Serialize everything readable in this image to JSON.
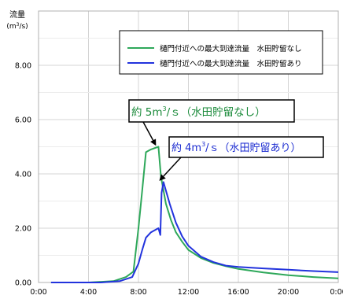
{
  "chart_data": {
    "type": "line",
    "ylabel": "流量",
    "yunit": "(m3/s)",
    "xlim": [
      0,
      24
    ],
    "ylim": [
      0,
      10
    ],
    "x_ticks": [
      0,
      4,
      8,
      12,
      16,
      20,
      24
    ],
    "x_tick_labels": [
      "0:00",
      "4:00",
      "8:00",
      "12:00",
      "16:00",
      "20:00",
      "0:00"
    ],
    "y_ticks": [
      0,
      2,
      4,
      6,
      8
    ],
    "y_tick_labels": [
      "0.00",
      "2.00",
      "4.00",
      "6.00",
      "8.00"
    ],
    "grid": true,
    "legend_position": "top-right",
    "series": [
      {
        "name": "樋門付近への最大到達流量　水田貯留なし",
        "color": "#2ea85a",
        "x": [
          1,
          4,
          6,
          7,
          7.6,
          8,
          8.3,
          8.6,
          9,
          9.6,
          9.8,
          10.2,
          10.6,
          11,
          11.5,
          12,
          13,
          14,
          15,
          16,
          18,
          20,
          22,
          24
        ],
        "y": [
          0,
          0,
          0.05,
          0.2,
          0.4,
          2.0,
          3.4,
          4.8,
          4.9,
          5.0,
          3.9,
          2.9,
          2.3,
          1.85,
          1.5,
          1.2,
          0.9,
          0.72,
          0.6,
          0.5,
          0.37,
          0.27,
          0.2,
          0.15
        ]
      },
      {
        "name": "樋門付近への最大到達流量　水田貯留あり",
        "color": "#2233dd",
        "x": [
          1,
          5,
          6.5,
          7.5,
          8,
          8.3,
          8.6,
          9,
          9.4,
          9.6,
          9.75,
          9.85,
          10,
          10.5,
          11,
          11.5,
          12,
          13,
          14,
          15,
          16,
          18,
          20,
          22,
          24
        ],
        "y": [
          0,
          0,
          0.05,
          0.2,
          0.7,
          1.2,
          1.65,
          1.85,
          1.95,
          2.0,
          1.75,
          3.3,
          3.7,
          2.9,
          2.2,
          1.7,
          1.35,
          0.95,
          0.75,
          0.62,
          0.57,
          0.52,
          0.47,
          0.42,
          0.38
        ]
      }
    ],
    "annotations": [
      {
        "text": "約 5m3/ｓ（水田貯留なし）",
        "base": "約 5m",
        "sup": "3",
        "tail": "/ｓ（水田貯留なし）",
        "target_x": 9.6,
        "target_y": 5.0
      },
      {
        "text": "約 4m3/ｓ（水田貯留あり）",
        "base": "約 4m",
        "sup": "3",
        "tail": "/ｓ（水田貯留あり）",
        "target_x": 10.0,
        "target_y": 3.7
      }
    ]
  }
}
